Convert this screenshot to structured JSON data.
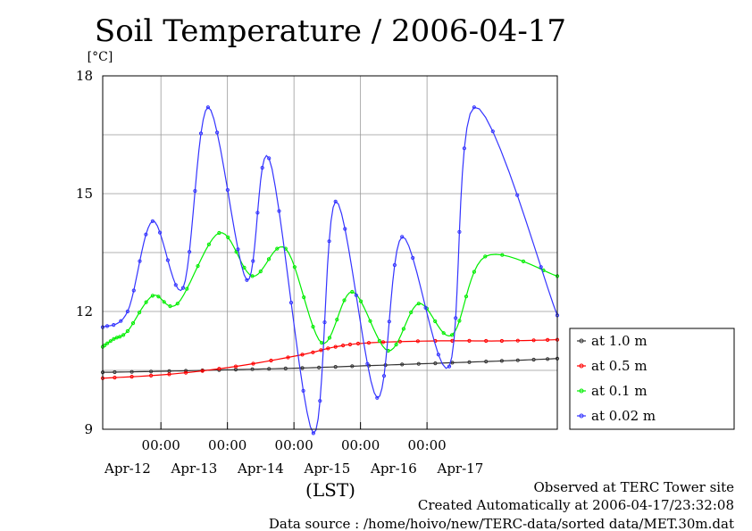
{
  "chart_data": {
    "type": "line",
    "title": "Soil Temperature / 2006-04-17",
    "unit_label": "[°C]",
    "xlabel": "(LST)",
    "ylim": [
      9,
      18
    ],
    "y_ticks": [
      "9",
      "12",
      "15",
      "18"
    ],
    "x_range": [
      "2006-04-11T03:00",
      "2006-04-17T23:00"
    ],
    "x_time_ticks": [
      {
        "t": "2006-04-12T00:00",
        "label": "00:00"
      },
      {
        "t": "2006-04-13T00:00",
        "label": "00:00"
      },
      {
        "t": "2006-04-14T00:00",
        "label": "00:00"
      },
      {
        "t": "2006-04-15T00:00",
        "label": "00:00"
      },
      {
        "t": "2006-04-16T00:00",
        "label": "00:00"
      }
    ],
    "x_date_labels": [
      {
        "t": "2006-04-11T12:00",
        "label": "Apr-12"
      },
      {
        "t": "2006-04-12T12:00",
        "label": "Apr-13"
      },
      {
        "t": "2006-04-13T12:00",
        "label": "Apr-14"
      },
      {
        "t": "2006-04-14T12:00",
        "label": "Apr-15"
      },
      {
        "t": "2006-04-15T12:00",
        "label": "Apr-16"
      },
      {
        "t": "2006-04-16T12:00",
        "label": "Apr-17"
      }
    ],
    "grid": true,
    "legend_position": "right",
    "series": [
      {
        "name": "at 1.0 m",
        "color": "#333333",
        "x": [
          "2006-04-11T03:00",
          "2006-04-12T03:00",
          "2006-04-13T03:00",
          "2006-04-14T03:00",
          "2006-04-15T03:00",
          "2006-04-16T03:00",
          "2006-04-17T03:00",
          "2006-04-17T23:00"
        ],
        "y": [
          10.45,
          10.48,
          10.52,
          10.56,
          10.62,
          10.68,
          10.74,
          10.8
        ]
      },
      {
        "name": "at 0.5 m",
        "color": "#ff0000",
        "x": [
          "2006-04-11T03:00",
          "2006-04-12T03:00",
          "2006-04-13T03:00",
          "2006-04-14T03:00",
          "2006-04-14T15:00",
          "2006-04-15T03:00",
          "2006-04-16T03:00",
          "2006-04-17T03:00",
          "2006-04-17T23:00"
        ],
        "y": [
          10.3,
          10.4,
          10.6,
          10.9,
          11.1,
          11.2,
          11.25,
          11.25,
          11.28
        ]
      },
      {
        "name": "at 0.1 m",
        "color": "#00ee00",
        "x": [
          "2006-04-11T03:00",
          "2006-04-11T07:00",
          "2006-04-11T12:00",
          "2006-04-11T21:00",
          "2006-04-12T06:00",
          "2006-04-12T21:00",
          "2006-04-13T09:00",
          "2006-04-13T21:00",
          "2006-04-14T10:00",
          "2006-04-14T21:00",
          "2006-04-15T10:00",
          "2006-04-15T21:00",
          "2006-04-16T09:00",
          "2006-04-16T21:00",
          "2006-04-17T23:00"
        ],
        "y": [
          11.1,
          11.3,
          11.5,
          12.4,
          12.2,
          14.0,
          12.9,
          13.6,
          11.2,
          12.5,
          11.0,
          12.2,
          11.4,
          13.4,
          12.9
        ]
      },
      {
        "name": "at 0.02 m",
        "color": "#3333ff",
        "x": [
          "2006-04-11T03:00",
          "2006-04-11T12:00",
          "2006-04-11T21:00",
          "2006-04-12T08:00",
          "2006-04-12T17:00",
          "2006-04-13T07:00",
          "2006-04-13T15:00",
          "2006-04-14T07:00",
          "2006-04-14T15:00",
          "2006-04-15T06:00",
          "2006-04-15T15:00",
          "2006-04-16T08:00",
          "2006-04-16T17:00",
          "2006-04-17T23:00"
        ],
        "y": [
          11.6,
          12.0,
          14.3,
          12.6,
          17.2,
          12.8,
          15.9,
          8.9,
          14.8,
          9.8,
          13.9,
          10.6,
          17.2,
          11.9
        ]
      }
    ]
  },
  "footer": {
    "site": "Observed at TERC Tower site",
    "created": "Created Automatically at 2006-04-17/23:32:08",
    "source": "Data source : /home/hoivo/new/TERC-data/sorted  data/MET.30m.dat"
  }
}
